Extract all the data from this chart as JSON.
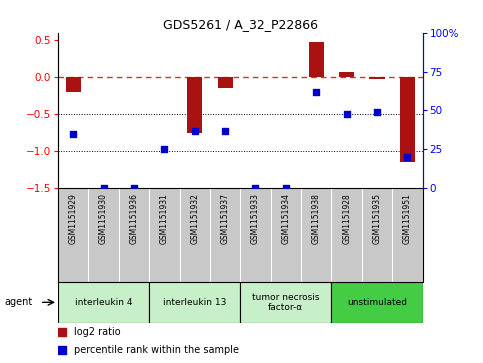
{
  "title": "GDS5261 / A_32_P22866",
  "samples": [
    "GSM1151929",
    "GSM1151930",
    "GSM1151936",
    "GSM1151931",
    "GSM1151932",
    "GSM1151937",
    "GSM1151933",
    "GSM1151934",
    "GSM1151938",
    "GSM1151928",
    "GSM1151935",
    "GSM1151951"
  ],
  "log2_ratio": [
    -0.2,
    0.0,
    0.0,
    0.0,
    -0.75,
    -0.15,
    0.0,
    0.0,
    0.48,
    0.07,
    -0.02,
    -1.15
  ],
  "percentile": [
    35,
    0,
    0,
    25,
    37,
    37,
    0,
    0,
    62,
    48,
    49,
    20
  ],
  "agents": [
    {
      "label": "interleukin 4",
      "start": 0,
      "end": 3,
      "color": "#c8f0c8"
    },
    {
      "label": "interleukin 13",
      "start": 3,
      "end": 6,
      "color": "#c8f0c8"
    },
    {
      "label": "tumor necrosis\nfactor-α",
      "start": 6,
      "end": 9,
      "color": "#c8f0c8"
    },
    {
      "label": "unstimulated",
      "start": 9,
      "end": 12,
      "color": "#44cc44"
    }
  ],
  "ylim_left": [
    -1.5,
    0.6
  ],
  "ylim_right": [
    0,
    100
  ],
  "yticks_left": [
    -1.5,
    -1.0,
    -0.5,
    0.0,
    0.5
  ],
  "yticks_right": [
    0,
    25,
    50,
    75,
    100
  ],
  "bar_color": "#aa1111",
  "dot_color": "#0000cc",
  "hline_color": "#cc3333",
  "dotted_color": "black",
  "background_color": "#ffffff",
  "bar_width": 0.5,
  "dot_size": 22,
  "sample_label_bg": "#c8c8c8",
  "sample_divider_color": "#ffffff"
}
